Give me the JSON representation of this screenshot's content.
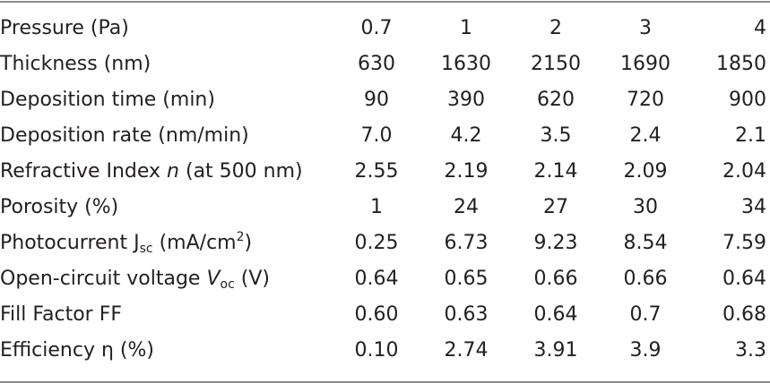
{
  "table": {
    "rows": [
      {
        "label": {
          "main": "Pressure (Pa)"
        },
        "values": [
          "0.7",
          "1",
          "2",
          "3",
          "4"
        ]
      },
      {
        "label": {
          "main": "Thickness (nm)"
        },
        "values": [
          "630",
          "1630",
          "2150",
          "1690",
          "1850"
        ]
      },
      {
        "label": {
          "main": "Deposition time (min)"
        },
        "values": [
          "90",
          "390",
          "620",
          "720",
          "900"
        ]
      },
      {
        "label": {
          "main": "Deposition rate (nm/min)"
        },
        "values": [
          "7.0",
          "4.2",
          "3.5",
          "2.4",
          "2.1"
        ]
      },
      {
        "label": {
          "main": "Refractive Index ",
          "italic": "n",
          "tail": " (at 500 nm)"
        },
        "values": [
          "2.55",
          "2.19",
          "2.14",
          "2.09",
          "2.04"
        ]
      },
      {
        "label": {
          "main": "Porosity (%)"
        },
        "values": [
          "1",
          "24",
          "27",
          "30",
          "34"
        ]
      },
      {
        "label": {
          "main": "Photocurrent J",
          "sub": "sc",
          "mid": " (mA/cm",
          "sup": "2",
          "tail": ")"
        },
        "values": [
          "0.25",
          "6.73",
          "9.23",
          "8.54",
          "7.59"
        ]
      },
      {
        "label": {
          "main": "Open-circuit voltage ",
          "italic": "V",
          "sub": "oc",
          "tail": " (V)"
        },
        "values": [
          "0.64",
          "0.65",
          "0.66",
          "0.66",
          "0.64"
        ]
      },
      {
        "label": {
          "main": "Fill Factor FF"
        },
        "values": [
          "0.60",
          "0.63",
          "0.64",
          "0.7",
          "0.68"
        ]
      },
      {
        "label": {
          "main": "Efficiency η (%)"
        },
        "values": [
          "0.10",
          "2.74",
          "3.91",
          "3.9",
          "3.3"
        ]
      }
    ]
  }
}
